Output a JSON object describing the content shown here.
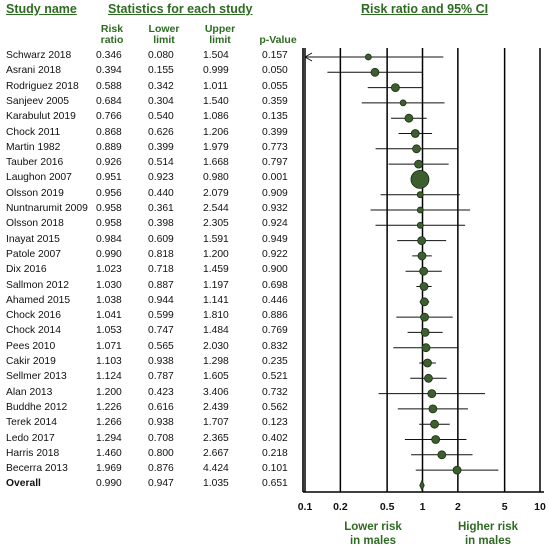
{
  "headers": {
    "study_name": "Study name",
    "statistics": "Statistics for each study",
    "plot": "Risk ratio and 95% CI"
  },
  "columns": {
    "risk_ratio": [
      "Risk",
      "ratio"
    ],
    "lower_limit": [
      "Lower",
      "limit"
    ],
    "upper_limit": [
      "Upper",
      "limit"
    ],
    "p_value": "p-Value"
  },
  "footer": {
    "lower_label": [
      "Lower risk",
      "in males"
    ],
    "higher_label": [
      "Higher risk",
      "in males"
    ]
  },
  "chart_data": {
    "type": "forest",
    "scale": "log",
    "xlim": [
      0.1,
      10
    ],
    "x_ticks": [
      "0.1",
      "0.2",
      "0.5",
      "1",
      "2",
      "5",
      "10"
    ],
    "x_tick_values": [
      0.1,
      0.2,
      0.5,
      1,
      2,
      5,
      10
    ],
    "colors": {
      "marker": "#3d5e2e",
      "marker_stroke": "#1a2e12",
      "text_accent": "#2e6b22"
    },
    "rows": [
      {
        "study": "Schwarz 2018",
        "rr": "0.346",
        "lower": "0.080",
        "upper": "1.504",
        "p": "0.157",
        "weight": 3
      },
      {
        "study": "Asrani 2018",
        "rr": "0.394",
        "lower": "0.155",
        "upper": "0.999",
        "p": "0.050",
        "weight": 4
      },
      {
        "study": "Rodriguez 2018",
        "rr": "0.588",
        "lower": "0.342",
        "upper": "1.011",
        "p": "0.055",
        "weight": 4
      },
      {
        "study": "Sanjeev 2005",
        "rr": "0.684",
        "lower": "0.304",
        "upper": "1.540",
        "p": "0.359",
        "weight": 3
      },
      {
        "study": "Karabulut 2019",
        "rr": "0.766",
        "lower": "0.540",
        "upper": "1.086",
        "p": "0.135",
        "weight": 4
      },
      {
        "study": "Chock 2011",
        "rr": "0.868",
        "lower": "0.626",
        "upper": "1.206",
        "p": "0.399",
        "weight": 4
      },
      {
        "study": "Martin 1982",
        "rr": "0.889",
        "lower": "0.399",
        "upper": "1.979",
        "p": "0.773",
        "weight": 4
      },
      {
        "study": "Tauber 2016",
        "rr": "0.926",
        "lower": "0.514",
        "upper": "1.668",
        "p": "0.797",
        "weight": 4
      },
      {
        "study": "Laughon 2007",
        "rr": "0.951",
        "lower": "0.923",
        "upper": "0.980",
        "p": "0.001",
        "weight": 9
      },
      {
        "study": "Olsson 2019",
        "rr": "0.956",
        "lower": "0.440",
        "upper": "2.079",
        "p": "0.909",
        "weight": 3
      },
      {
        "study": "Nuntnarumit 2009",
        "rr": "0.958",
        "lower": "0.361",
        "upper": "2.544",
        "p": "0.932",
        "weight": 3
      },
      {
        "study": "Olsson 2018",
        "rr": "0.958",
        "lower": "0.398",
        "upper": "2.305",
        "p": "0.924",
        "weight": 3
      },
      {
        "study": "Inayat 2015",
        "rr": "0.984",
        "lower": "0.609",
        "upper": "1.591",
        "p": "0.949",
        "weight": 4
      },
      {
        "study": "Patole 2007",
        "rr": "0.990",
        "lower": "0.818",
        "upper": "1.200",
        "p": "0.922",
        "weight": 4
      },
      {
        "study": "Dix 2016",
        "rr": "1.023",
        "lower": "0.718",
        "upper": "1.459",
        "p": "0.900",
        "weight": 4
      },
      {
        "study": "Sallmon 2012",
        "rr": "1.030",
        "lower": "0.887",
        "upper": "1.197",
        "p": "0.698",
        "weight": 4
      },
      {
        "study": "Ahamed 2015",
        "rr": "1.038",
        "lower": "0.944",
        "upper": "1.141",
        "p": "0.446",
        "weight": 4
      },
      {
        "study": "Chock 2016",
        "rr": "1.041",
        "lower": "0.599",
        "upper": "1.810",
        "p": "0.886",
        "weight": 4
      },
      {
        "study": "Chock 2014",
        "rr": "1.053",
        "lower": "0.747",
        "upper": "1.484",
        "p": "0.769",
        "weight": 4
      },
      {
        "study": "Pees 2010",
        "rr": "1.071",
        "lower": "0.565",
        "upper": "2.030",
        "p": "0.832",
        "weight": 4
      },
      {
        "study": "Cakir 2019",
        "rr": "1.103",
        "lower": "0.938",
        "upper": "1.298",
        "p": "0.235",
        "weight": 4
      },
      {
        "study": "Sellmer 2013",
        "rr": "1.124",
        "lower": "0.787",
        "upper": "1.605",
        "p": "0.521",
        "weight": 4
      },
      {
        "study": "Alan 2013",
        "rr": "1.200",
        "lower": "0.423",
        "upper": "3.406",
        "p": "0.732",
        "weight": 4
      },
      {
        "study": "Buddhe 2012",
        "rr": "1.226",
        "lower": "0.616",
        "upper": "2.439",
        "p": "0.562",
        "weight": 4
      },
      {
        "study": "Terek 2014",
        "rr": "1.266",
        "lower": "0.938",
        "upper": "1.707",
        "p": "0.123",
        "weight": 4
      },
      {
        "study": "Ledo 2017",
        "rr": "1.294",
        "lower": "0.708",
        "upper": "2.365",
        "p": "0.402",
        "weight": 4
      },
      {
        "study": "Harris 2018",
        "rr": "1.460",
        "lower": "0.800",
        "upper": "2.667",
        "p": "0.218",
        "weight": 4
      },
      {
        "study": "Becerra 2013",
        "rr": "1.969",
        "lower": "0.876",
        "upper": "4.424",
        "p": "0.101",
        "weight": 4
      }
    ],
    "overall": {
      "study": "Overall",
      "rr": "0.990",
      "lower": "0.947",
      "upper": "1.035",
      "p": "0.651"
    }
  }
}
